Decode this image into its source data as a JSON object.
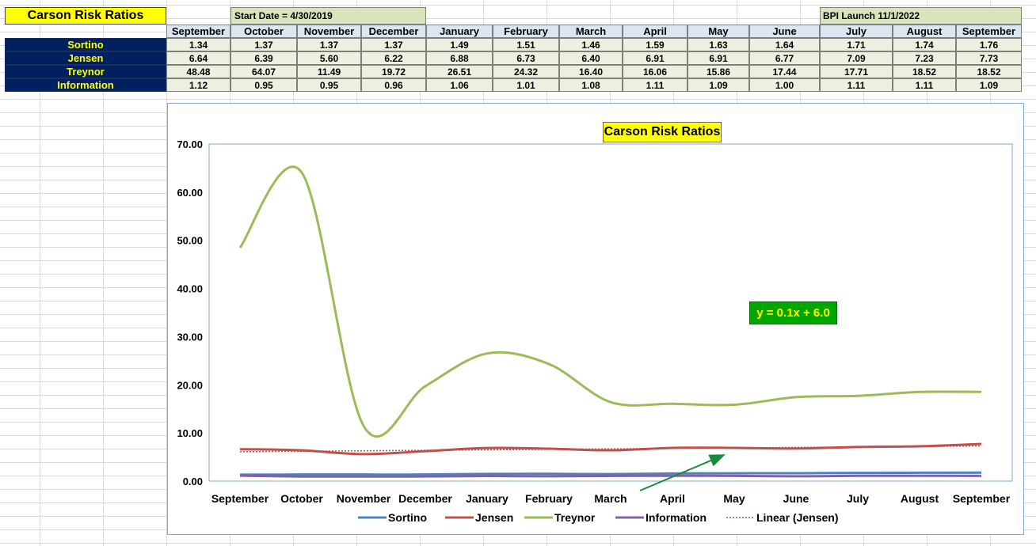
{
  "sheet": {
    "title": "Carson Risk Ratios",
    "start_date": "Start Date = 4/30/2019",
    "bpi_launch": "BPI Launch 11/1/2022",
    "months": [
      "September",
      "October",
      "November",
      "December",
      "January",
      "February",
      "March",
      "April",
      "May",
      "June",
      "July",
      "August",
      "September"
    ],
    "rows": [
      {
        "label": "Sortino",
        "values": [
          "1.34",
          "1.37",
          "1.37",
          "1.37",
          "1.49",
          "1.51",
          "1.46",
          "1.59",
          "1.63",
          "1.64",
          "1.71",
          "1.74",
          "1.76"
        ]
      },
      {
        "label": "Jensen",
        "values": [
          "6.64",
          "6.39",
          "5.60",
          "6.22",
          "6.88",
          "6.73",
          "6.40",
          "6.91",
          "6.91",
          "6.77",
          "7.09",
          "7.23",
          "7.73"
        ]
      },
      {
        "label": "Treynor",
        "values": [
          "48.48",
          "64.07",
          "11.49",
          "19.72",
          "26.51",
          "24.32",
          "16.40",
          "16.06",
          "15.86",
          "17.44",
          "17.71",
          "18.52",
          "18.52"
        ]
      },
      {
        "label": "Information",
        "values": [
          "1.12",
          "0.95",
          "0.95",
          "0.96",
          "1.06",
          "1.01",
          "1.08",
          "1.11",
          "1.09",
          "1.00",
          "1.11",
          "1.11",
          "1.09"
        ]
      }
    ]
  },
  "chart_data": {
    "type": "line",
    "title": "Carson Risk Ratios",
    "categories": [
      "September",
      "October",
      "November",
      "December",
      "January",
      "February",
      "March",
      "April",
      "May",
      "June",
      "July",
      "August",
      "September"
    ],
    "ylim": [
      0,
      70
    ],
    "yticks": [
      "0.00",
      "10.00",
      "20.00",
      "30.00",
      "40.00",
      "50.00",
      "60.00",
      "70.00"
    ],
    "grid": false,
    "legend_position": "bottom",
    "series": [
      {
        "name": "Sortino",
        "color": "#4f81bd",
        "values": [
          1.34,
          1.37,
          1.37,
          1.37,
          1.49,
          1.51,
          1.46,
          1.59,
          1.63,
          1.64,
          1.71,
          1.74,
          1.76
        ]
      },
      {
        "name": "Jensen",
        "color": "#c0504d",
        "values": [
          6.64,
          6.39,
          5.6,
          6.22,
          6.88,
          6.73,
          6.4,
          6.91,
          6.91,
          6.77,
          7.09,
          7.23,
          7.73
        ]
      },
      {
        "name": "Treynor",
        "color": "#9bbb59",
        "values": [
          48.48,
          64.07,
          11.49,
          19.72,
          26.51,
          24.32,
          16.4,
          16.06,
          15.86,
          17.44,
          17.71,
          18.52,
          18.52
        ]
      },
      {
        "name": "Information",
        "color": "#8064a2",
        "values": [
          1.12,
          0.95,
          0.95,
          0.96,
          1.06,
          1.01,
          1.08,
          1.11,
          1.09,
          1.0,
          1.11,
          1.11,
          1.09
        ]
      }
    ],
    "trendline": {
      "name": "Linear (Jensen)",
      "color": "#c0504d",
      "style": "dotted",
      "slope": 0.1,
      "intercept": 6.0
    },
    "annotation": {
      "text": "y = 0.1x + 6.0",
      "background": "#00a600",
      "color": "#ffff00"
    },
    "arrow_color": "#1a8a3a"
  }
}
